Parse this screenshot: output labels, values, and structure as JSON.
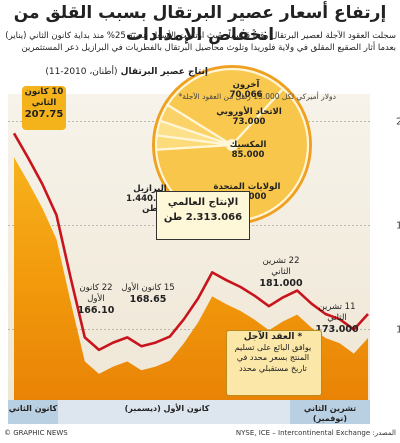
{
  "title": "إرتفاع أسعار عصير البرتقال بسبب القلق من انخفاض الإمدادات",
  "subtitle": "سجلت العقود الآجلة لعصير البرتقال رقماً قياسياً، حيث ارتفعت الأسعار بنسبة 25% منذ بداية كانون الثاني (يناير) بعدما أثار الصقيع المقلق في ولاية فلوريدا وتلوث محاصيل البرتقال بالفطريات في البرازيل ذعر المستثمرين",
  "note": {
    "title": "* العقد الآجل",
    "body": "يوافق البائع على تسليم المنتج بسعر محدد في تاريخ مستقبلي محدد"
  },
  "footer": {
    "source": "المصدر: NYSE, ICE – Intercontinental Exchange",
    "credit": "© GRAPHIC NEWS"
  },
  "chart_data": [
    {
      "type": "area",
      "ylabel": "دولار أميركي لكل 15.000 رطل من العقود الآجلة*",
      "yticks": [
        170,
        190,
        210
      ],
      "ylim": [
        163,
        213
      ],
      "x_labels": [
        "كانون الثاني",
        "كانون الأول (ديسمبر)",
        "تشرين الثاني (نوفمبر)"
      ],
      "values": [
        207.75,
        203,
        198,
        192,
        180,
        168.5,
        166.1,
        167.5,
        168.5,
        166.8,
        167.5,
        168.65,
        172,
        176,
        181,
        179.5,
        178.2,
        176.5,
        174.5,
        176.2,
        177.5,
        175,
        173,
        172,
        170,
        173
      ],
      "annotations": [
        {
          "date": "10 كانون الثاني",
          "value": "207.75"
        },
        {
          "date": "22 كانون الأول",
          "value": "166.10"
        },
        {
          "date": "15 كانون الأول",
          "value": "168.65"
        },
        {
          "date": "22 تشرين الثاني",
          "value": "181.000"
        },
        {
          "date": "11 تشرين الثاني",
          "value": "173.000"
        }
      ]
    },
    {
      "type": "pie",
      "title": "إنتاج عصير البرتقال",
      "subtitle": "(أطنان، 2010-11)",
      "total_label": "الإنتاج العالمي",
      "total_value": "2.313.066 طن",
      "slices": [
        {
          "name": "آخرون",
          "value": 70066,
          "value_text": "70.066"
        },
        {
          "name": "الاتحاد الأوروبي",
          "value": 73000,
          "value_text": "73.000"
        },
        {
          "name": "المكسيك",
          "value": 85000,
          "value_text": "85.000"
        },
        {
          "name": "الولايات المتحدة",
          "value": 645000,
          "value_text": "645.000"
        },
        {
          "name": "البرازيل",
          "value": 1440000,
          "value_text": "1.440.000 طن"
        }
      ]
    }
  ]
}
